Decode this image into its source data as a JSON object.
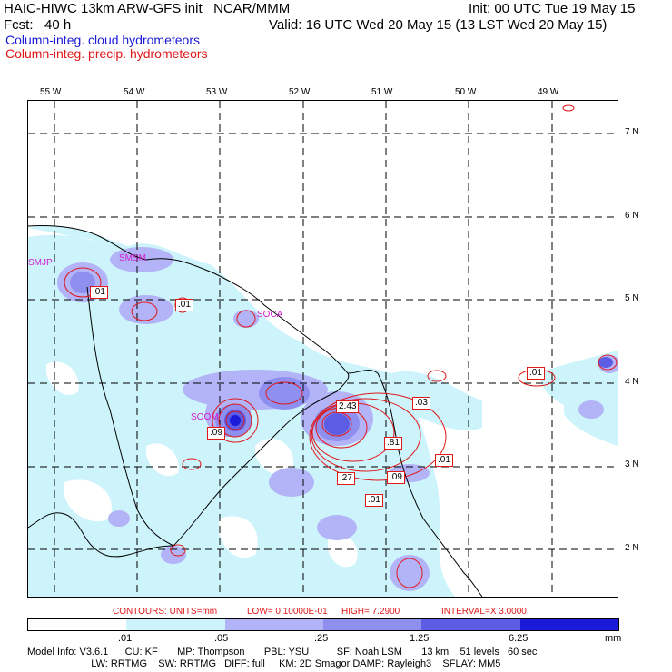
{
  "header": {
    "title": "HAIC-HIWC 13km ARW-GFS init   NCAR/MMM",
    "fcst": "Fcst:   40 h",
    "init": "Init: 00 UTC Tue 19 May 15",
    "valid": "Valid: 16 UTC Wed 20 May 15 (13 LST Wed 20 May 15)",
    "field1": "Column-integ. cloud hydrometeors",
    "field2": "Column-integ. precip. hydrometeors"
  },
  "map": {
    "lon_labels": [
      "55 W",
      "54 W",
      "53 W",
      "52 W",
      "51 W",
      "50 W",
      "49 W"
    ],
    "lat_labels": [
      "7 N",
      "6 N",
      "5 N",
      "4 N",
      "3 N",
      "2 N"
    ],
    "stations": [
      "SMJP",
      "SMSM",
      "SOCA",
      "SOOM"
    ],
    "contour_labels": [
      ".01",
      ".01",
      ".01",
      "2.43",
      ".03",
      ".81",
      ".01",
      ".09",
      ".27",
      ".01",
      ".09"
    ]
  },
  "contour_info": {
    "units": "CONTOURS:  UNITS=mm",
    "low": "LOW= 0.10000E-01",
    "high": "HIGH=  7.2900",
    "interval": "INTERVAL=X  3.0000"
  },
  "legend": {
    "ticks": [
      ".01",
      ".05",
      ".25",
      "1.25",
      "6.25"
    ],
    "unit": "mm",
    "colors": [
      "#ffffff",
      "#cdf3fb",
      "#b3b3f7",
      "#8f8ff0",
      "#5c5ce4",
      "#1a1ad8"
    ]
  },
  "model_info": {
    "line1": "Model Info: V3.6.1      CU: KF       MP: Thompson       PBL: YSU          SF: Noah LSM       13 km    51 levels   60 sec",
    "line2": "                       LW: RRTMG    SW: RRTMG   DIFF: full     KM: 2D Smagor DAMP: Rayleigh3    SFLAY: MM5"
  }
}
